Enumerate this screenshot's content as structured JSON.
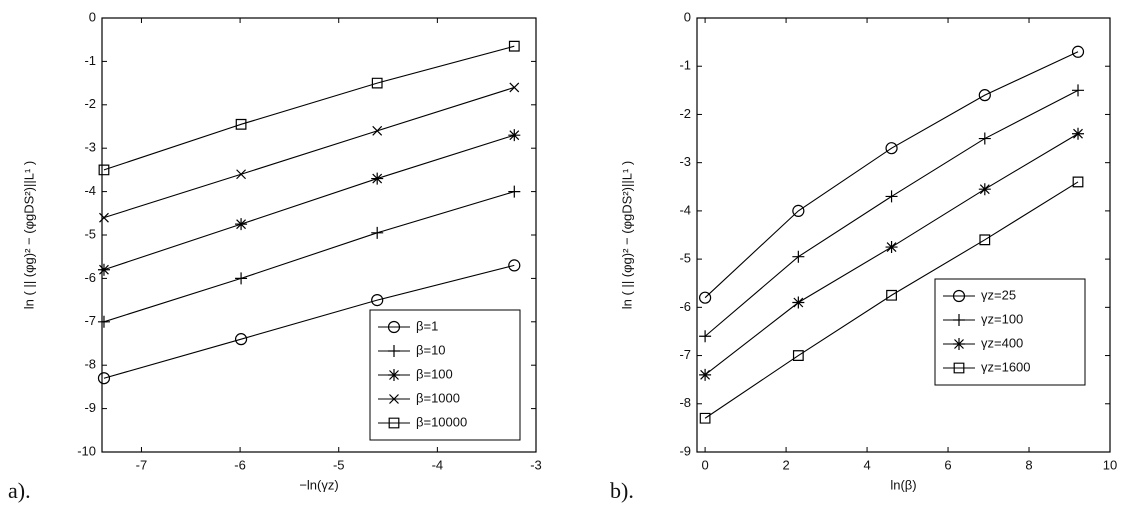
{
  "chart_data": [
    {
      "type": "line",
      "panel_label": "a).",
      "x_label": "−ln(γz)",
      "y_label": "ln ( || (φg)² − (φgDS²)||L¹ )",
      "x": [
        -7.38,
        -5.99,
        -4.61,
        -3.22
      ],
      "xlim": [
        -7.4,
        -3
      ],
      "xticks": [
        -7,
        -6,
        -5,
        -4,
        -3
      ],
      "ylim": [
        -10,
        0
      ],
      "yticks": [
        -10,
        -9,
        -8,
        -7,
        -6,
        -5,
        -4,
        -3,
        -2,
        -1,
        0
      ],
      "legend": "lower right",
      "series": [
        {
          "name": "β=1",
          "color": "#000000",
          "marker": "circle",
          "values": [
            -8.3,
            -7.4,
            -6.5,
            -5.7
          ]
        },
        {
          "name": "β=10",
          "color": "#000000",
          "marker": "plus",
          "values": [
            -7.0,
            -6.0,
            -4.95,
            -4.0
          ]
        },
        {
          "name": "β=100",
          "color": "#000000",
          "marker": "star",
          "values": [
            -5.8,
            -4.75,
            -3.7,
            -2.7
          ]
        },
        {
          "name": "β=1000",
          "color": "#000000",
          "marker": "x",
          "values": [
            -4.6,
            -3.6,
            -2.6,
            -1.6
          ]
        },
        {
          "name": "β=10000",
          "color": "#000000",
          "marker": "square",
          "values": [
            -3.5,
            -2.45,
            -1.5,
            -0.65
          ]
        }
      ]
    },
    {
      "type": "line",
      "panel_label": "b).",
      "x_label": "ln(β)",
      "y_label": "ln ( || (φg)² − (φgDS²)||L¹ )",
      "x": [
        0,
        2.303,
        4.605,
        6.908,
        9.21
      ],
      "xlim": [
        -0.2,
        10
      ],
      "xticks": [
        0,
        2,
        4,
        6,
        8,
        10
      ],
      "ylim": [
        -9,
        0
      ],
      "yticks": [
        -9,
        -8,
        -7,
        -6,
        -5,
        -4,
        -3,
        -2,
        -1,
        0
      ],
      "legend": "lower right",
      "series": [
        {
          "name": "γz=25",
          "color": "#000000",
          "marker": "circle",
          "values": [
            -5.8,
            -4.0,
            -2.7,
            -1.6,
            -0.7
          ]
        },
        {
          "name": "γz=100",
          "color": "#000000",
          "marker": "plus",
          "values": [
            -6.6,
            -4.95,
            -3.7,
            -2.5,
            -1.5
          ]
        },
        {
          "name": "γz=400",
          "color": "#000000",
          "marker": "star",
          "values": [
            -7.4,
            -5.9,
            -4.75,
            -3.55,
            -2.4
          ]
        },
        {
          "name": "γz=1600",
          "color": "#000000",
          "marker": "square",
          "values": [
            -8.3,
            -7.0,
            -5.75,
            -4.6,
            -3.4
          ]
        }
      ]
    }
  ]
}
